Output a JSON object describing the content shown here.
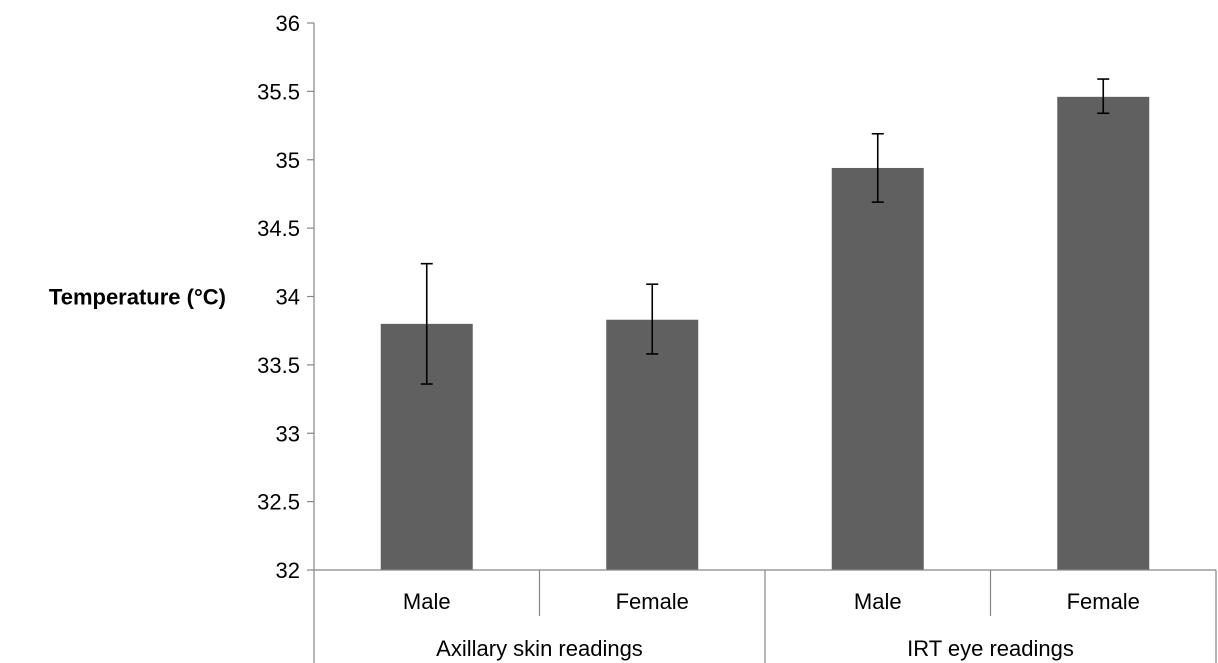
{
  "chart_data": {
    "type": "bar",
    "title": "",
    "xlabel": "",
    "ylabel": "Temperature (°C)",
    "ylim": [
      32,
      36
    ],
    "yticks": [
      "32",
      "32.5",
      "33",
      "33.5",
      "34",
      "34.5",
      "35",
      "35.5",
      "36"
    ],
    "grid": false,
    "legend": "none",
    "groups": [
      {
        "label": "Axillary skin readings",
        "categories": [
          "Male",
          "Female"
        ]
      },
      {
        "label": "IRT eye readings",
        "categories": [
          "Male",
          "Female"
        ]
      }
    ],
    "categories": [
      "Male",
      "Female",
      "Male",
      "Female"
    ],
    "values": [
      33.8,
      33.83,
      34.94,
      35.46
    ],
    "error_low": [
      33.36,
      33.58,
      34.69,
      35.34
    ],
    "error_high": [
      34.24,
      34.09,
      35.19,
      35.59
    ],
    "colors": {
      "bar": "#606060",
      "axis": "#868686",
      "errorbar": "#000000"
    }
  }
}
